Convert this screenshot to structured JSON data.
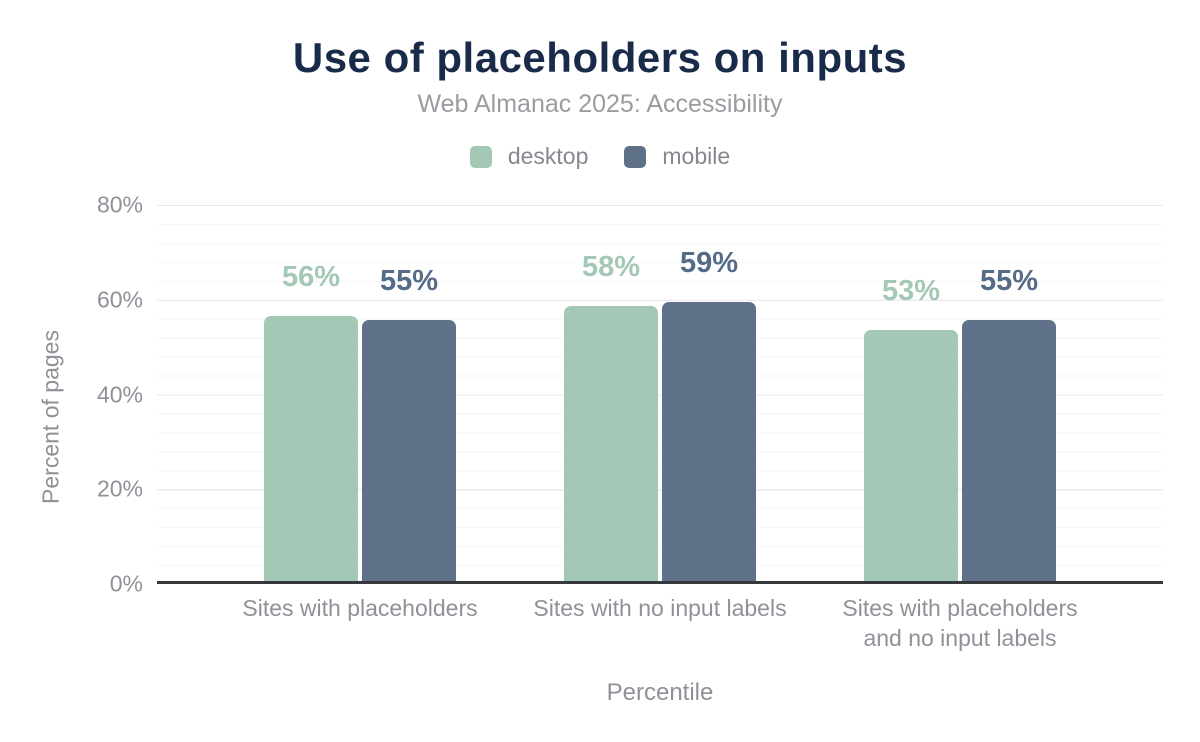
{
  "title": "Use of placeholders on inputs",
  "subtitle": "Web Almanac 2025: Accessibility",
  "legend": [
    {
      "label": "desktop",
      "color": "#a3c8b5"
    },
    {
      "label": "mobile",
      "color": "#5f7189"
    }
  ],
  "chart_data": {
    "type": "bar",
    "categories": [
      "Sites with placeholders",
      "Sites with no input labels",
      "Sites with placeholders and no input labels"
    ],
    "series": [
      {
        "name": "desktop",
        "values": [
          56,
          58,
          53
        ],
        "color": "#a3c8b5",
        "label_color": "#a3c8b5"
      },
      {
        "name": "mobile",
        "values": [
          55,
          59,
          55
        ],
        "color": "#5f7189",
        "label_color": "#566b88"
      }
    ],
    "data_label_format": "{value}%",
    "title": "Use of placeholders on inputs",
    "subtitle": "Web Almanac 2025: Accessibility",
    "xlabel": "Percentile",
    "ylabel": "Percent of pages",
    "ylim": [
      0,
      80
    ],
    "yticks": [
      "0%",
      "20%",
      "40%",
      "60%",
      "80%"
    ],
    "ytick_values": [
      0,
      20,
      40,
      60,
      80
    ],
    "grid": "horizontal; minor every 4%, major every 20%",
    "legend_position": "top"
  },
  "colors": {
    "background": "#ffffff",
    "title_text": "#1a2b49",
    "subtitle_text": "#9b9ca1",
    "legend_text": "#85888f",
    "axis_text": "#8e9197",
    "axis_line": "#37383c",
    "grid_major": "#eaeaea",
    "grid_minor": "#f6f6f6"
  }
}
